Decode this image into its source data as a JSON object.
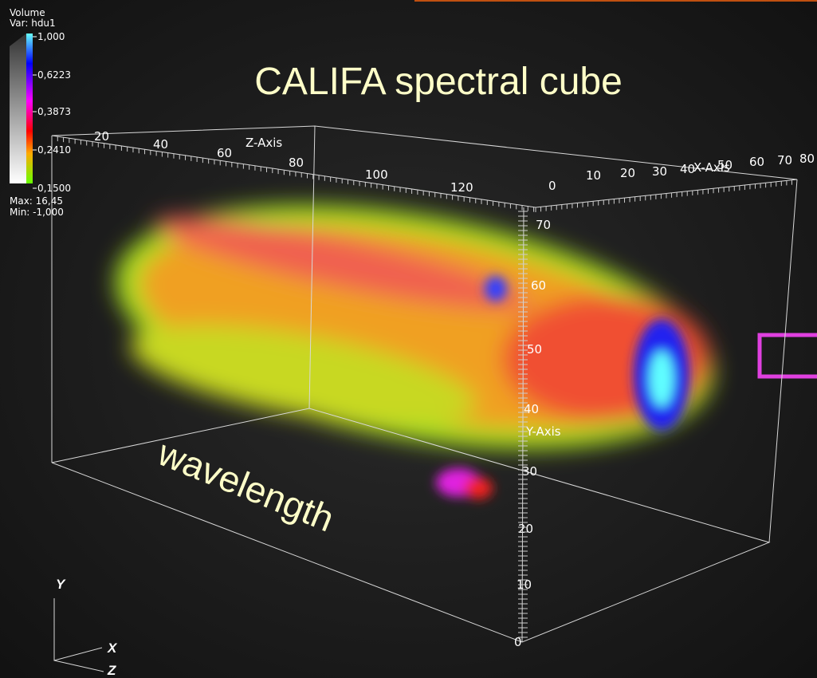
{
  "slide": {
    "title": "CALIFA spectral cube",
    "annotation": "wavelength"
  },
  "legend": {
    "heading": "Volume",
    "variable": "Var: hdu1",
    "ticks": [
      "1,000",
      "0,6223",
      "0,3873",
      "0,2410",
      "0,1500"
    ],
    "max": "Max: 16,45",
    "min": "Min: -1,000"
  },
  "z_axis": {
    "label": "Z-Axis",
    "ticks": [
      20,
      40,
      60,
      80,
      100,
      120
    ]
  },
  "x_axis": {
    "label": "X-Axis",
    "ticks": [
      0,
      10,
      20,
      30,
      40,
      50,
      60,
      70,
      80
    ]
  },
  "y_axis": {
    "label": "Y-Axis",
    "ticks": [
      70,
      60,
      50,
      40,
      30,
      20,
      10,
      0
    ]
  },
  "triad": {
    "y": "Y",
    "x": "X",
    "z": "Z"
  }
}
